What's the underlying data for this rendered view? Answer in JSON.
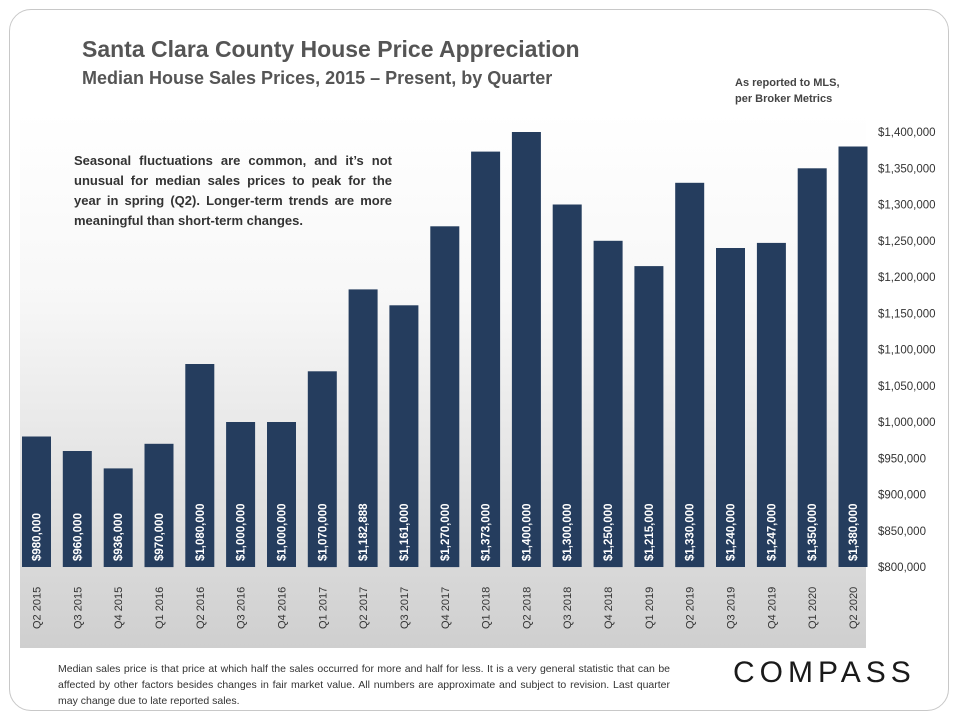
{
  "header": {
    "title": "Santa Clara County House Price Appreciation",
    "subtitle": "Median House Sales Prices, 2015 – Present, by Quarter",
    "source_note_line1": "As reported to MLS,",
    "source_note_line2": "per Broker Metrics"
  },
  "annotation": "Seasonal fluctuations are common, and it’s not unusual for median sales prices to peak for the year in spring (Q2). Longer-term trends are more meaningful than short-term changes.",
  "footnote": "Median sales price is that price at which half the sales occurred for more and half for less. It is a very general statistic that can be affected by other factors besides changes in fair market value. All numbers are approximate and subject to revision. Last quarter may change due to late reported sales.",
  "logo": "COMPASS",
  "colors": {
    "bar": "#253d5e",
    "bar_label": "#ffffff",
    "axis_text": "#333333"
  },
  "chart_data": {
    "type": "bar",
    "title": "Santa Clara County House Price Appreciation",
    "subtitle": "Median House Sales Prices, 2015 – Present, by Quarter",
    "xlabel": "",
    "ylabel": "",
    "ylim": [
      800000,
      1400000
    ],
    "yticks": [
      800000,
      850000,
      900000,
      950000,
      1000000,
      1050000,
      1100000,
      1150000,
      1200000,
      1250000,
      1300000,
      1350000,
      1400000
    ],
    "ytick_labels": [
      "$800,000",
      "$850,000",
      "$900,000",
      "$950,000",
      "$1,000,000",
      "$1,050,000",
      "$1,100,000",
      "$1,150,000",
      "$1,200,000",
      "$1,250,000",
      "$1,300,000",
      "$1,350,000",
      "$1,400,000"
    ],
    "y_axis_side": "right",
    "grid": false,
    "legend": "none",
    "categories": [
      "Q2 2015",
      "Q3 2015",
      "Q4 2015",
      "Q1 2016",
      "Q2 2016",
      "Q3 2016",
      "Q4 2016",
      "Q1 2017",
      "Q2 2017",
      "Q3 2017",
      "Q4 2017",
      "Q1 2018",
      "Q2 2018",
      "Q3 2018",
      "Q4 2018",
      "Q1 2019",
      "Q2 2019",
      "Q3 2019",
      "Q4 2019",
      "Q1 2020",
      "Q2 2020"
    ],
    "values": [
      980000,
      960000,
      936000,
      970000,
      1080000,
      1000000,
      1000000,
      1070000,
      1182888,
      1161000,
      1270000,
      1373000,
      1400000,
      1300000,
      1250000,
      1215000,
      1330000,
      1240000,
      1247000,
      1350000,
      1380000
    ],
    "value_labels": [
      "$980,000",
      "$960,000",
      "$936,000",
      "$970,000",
      "$1,080,000",
      "$1,000,000",
      "$1,000,000",
      "$1,070,000",
      "$1,182,888",
      "$1,161,000",
      "$1,270,000",
      "$1,373,000",
      "$1,400,000",
      "$1,300,000",
      "$1,250,000",
      "$1,215,000",
      "$1,330,000",
      "$1,240,000",
      "$1,247,000",
      "$1,350,000",
      "$1,380,000"
    ]
  }
}
